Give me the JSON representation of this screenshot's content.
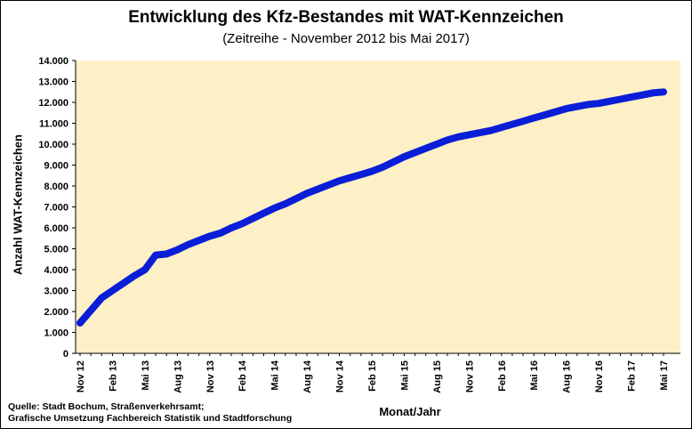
{
  "chart_data": {
    "type": "line",
    "title": "Entwicklung des Kfz-Bestandes mit WAT-Kennzeichen",
    "subtitle": "(Zeitreihe - November 2012 bis Mai 2017)",
    "xlabel": "Monat/Jahr",
    "ylabel": "Anzahl WAT-Kennzeichen",
    "ylim": [
      0,
      14000
    ],
    "y_ticks": [
      0,
      1000,
      2000,
      3000,
      4000,
      5000,
      6000,
      7000,
      8000,
      9000,
      10000,
      11000,
      12000,
      13000,
      14000
    ],
    "y_tick_labels": [
      "0",
      "1.000",
      "2.000",
      "3.000",
      "4.000",
      "5.000",
      "6.000",
      "7.000",
      "8.000",
      "9.000",
      "10.000",
      "11.000",
      "12.000",
      "13.000",
      "14.000"
    ],
    "x_tick_labels": [
      "Nov 12",
      "Feb 13",
      "Mai 13",
      "Aug 13",
      "Nov 13",
      "Feb 14",
      "Mai 14",
      "Aug 14",
      "Nov 14",
      "Feb 15",
      "Mai 15",
      "Aug 15",
      "Nov 15",
      "Feb 16",
      "Mai 16",
      "Aug 16",
      "Nov 16",
      "Feb 17",
      "Mai 17"
    ],
    "x": [
      "Nov 12",
      "Dez 12",
      "Jan 13",
      "Feb 13",
      "Mrz 13",
      "Apr 13",
      "Mai 13",
      "Jun 13",
      "Jul 13",
      "Aug 13",
      "Sep 13",
      "Okt 13",
      "Nov 13",
      "Dez 13",
      "Jan 14",
      "Feb 14",
      "Mrz 14",
      "Apr 14",
      "Mai 14",
      "Jun 14",
      "Jul 14",
      "Aug 14",
      "Sep 14",
      "Okt 14",
      "Nov 14",
      "Dez 14",
      "Jan 15",
      "Feb 15",
      "Mrz 15",
      "Apr 15",
      "Mai 15",
      "Jun 15",
      "Jul 15",
      "Aug 15",
      "Sep 15",
      "Okt 15",
      "Nov 15",
      "Dez 15",
      "Jan 16",
      "Feb 16",
      "Mrz 16",
      "Apr 16",
      "Mai 16",
      "Jun 16",
      "Jul 16",
      "Aug 16",
      "Sep 16",
      "Okt 16",
      "Nov 16",
      "Dez 16",
      "Jan 17",
      "Feb 17",
      "Mrz 17",
      "Apr 17",
      "Mai 17"
    ],
    "series": [
      {
        "values": [
          1450,
          2050,
          2650,
          3000,
          3350,
          3700,
          4000,
          4700,
          4750,
          4950,
          5200,
          5400,
          5600,
          5750,
          6000,
          6200,
          6450,
          6700,
          6950,
          7150,
          7400,
          7650,
          7850,
          8050,
          8250,
          8400,
          8550,
          8700,
          8900,
          9150,
          9400,
          9600,
          9800,
          10000,
          10200,
          10350,
          10450,
          10550,
          10650,
          10800,
          10950,
          11100,
          11250,
          11400,
          11550,
          11700,
          11800,
          11900,
          11950,
          12050,
          12150,
          12250,
          12350,
          12450,
          12500
        ]
      }
    ],
    "grid": false,
    "legend": "none",
    "colors": {
      "line": "#0a1ed8",
      "plot_background": "#fdf0c6",
      "axis": "#000000"
    }
  },
  "footer": {
    "source_line1": "Quelle: Stadt Bochum,  Straßenverkehrsamt;",
    "source_line2": "Grafische Umsetzung Fachbereich Statistik und Stadtforschung"
  }
}
